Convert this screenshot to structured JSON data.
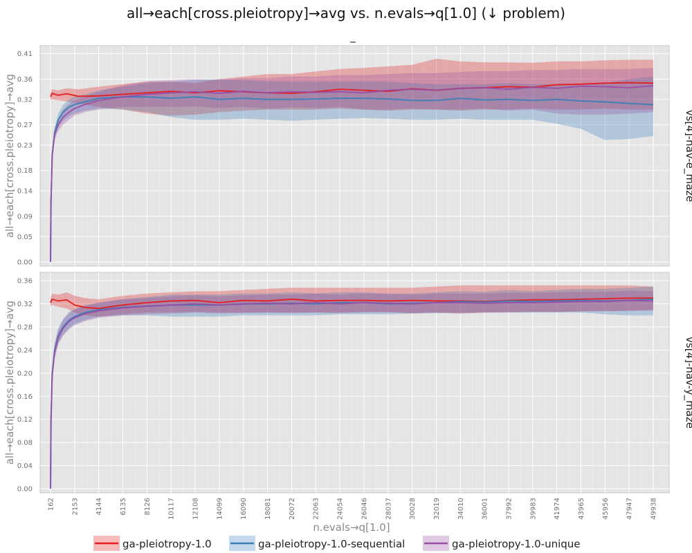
{
  "chart_data": {
    "type": "line",
    "title": "all→each[cross.pleiotropy]→avg vs. n.evals→q[1.0] (↓ problem)",
    "subtitle": "_",
    "xlabel": "n.evals→q[1.0]",
    "ylabel": "all→each[cross.pleiotropy]→avg",
    "x_ticks": [
      162,
      2153,
      4144,
      6135,
      8126,
      10117,
      12108,
      14099,
      16090,
      18081,
      20072,
      22063,
      24054,
      26046,
      28037,
      30028,
      32019,
      34010,
      36001,
      37992,
      39983,
      41974,
      43965,
      45956,
      47947,
      49938
    ],
    "xlim": [
      162,
      49938
    ],
    "grid": true,
    "legend_position": "bottom",
    "series_styles": [
      {
        "name": "ga-pleiotropy-1.0",
        "color": "#e41a1c"
      },
      {
        "name": "ga-pleiotropy-1.0-sequential",
        "color": "#377eb8"
      },
      {
        "name": "ga-pleiotropy-1.0-unique",
        "color": "#984ea3"
      }
    ],
    "facets": [
      {
        "label": "vs[4]-nav-e_maze",
        "y_ticks": [
          "0.00",
          "0.05",
          "0.09",
          "0.14",
          "0.18",
          "0.23",
          "0.27",
          "0.32",
          "0.36",
          "0.41"
        ],
        "ylim": [
          0,
          0.415
        ],
        "series": [
          {
            "name": "ga-pleiotropy-1.0",
            "x": [
              162,
              300,
              800,
              1500,
              2500,
              4144,
              6135,
              8126,
              10117,
              12108,
              14099,
              16090,
              18081,
              20072,
              22063,
              24054,
              26046,
              28037,
              30028,
              32019,
              34010,
              36001,
              37992,
              39983,
              41974,
              43965,
              45956,
              47947,
              49938
            ],
            "mean": [
              0.325,
              0.332,
              0.328,
              0.331,
              0.326,
              0.327,
              0.33,
              0.333,
              0.336,
              0.333,
              0.337,
              0.335,
              0.333,
              0.332,
              0.335,
              0.34,
              0.338,
              0.336,
              0.341,
              0.338,
              0.342,
              0.343,
              0.345,
              0.344,
              0.349,
              0.35,
              0.352,
              0.353,
              0.352
            ],
            "lower": [
              0.318,
              0.32,
              0.318,
              0.316,
              0.312,
              0.305,
              0.3,
              0.292,
              0.288,
              0.29,
              0.295,
              0.298,
              0.3,
              0.3,
              0.3,
              0.302,
              0.3,
              0.298,
              0.3,
              0.3,
              0.298,
              0.3,
              0.3,
              0.302,
              0.3,
              0.3,
              0.302,
              0.3,
              0.3
            ],
            "upper": [
              0.332,
              0.34,
              0.338,
              0.342,
              0.34,
              0.345,
              0.35,
              0.355,
              0.355,
              0.352,
              0.36,
              0.365,
              0.37,
              0.37,
              0.375,
              0.38,
              0.382,
              0.385,
              0.388,
              0.4,
              0.395,
              0.393,
              0.393,
              0.392,
              0.395,
              0.395,
              0.397,
              0.398,
              0.398
            ]
          },
          {
            "name": "ga-pleiotropy-1.0-sequential",
            "x": [
              162,
              200,
              300,
              500,
              800,
              1200,
              1700,
              2153,
              3000,
              4144,
              6135,
              8126,
              10117,
              12108,
              14099,
              16090,
              18081,
              20072,
              22063,
              24054,
              26046,
              28037,
              30028,
              32019,
              34010,
              36001,
              37992,
              39983,
              41974,
              43965,
              45956,
              47947,
              49938
            ],
            "mean": [
              0.0,
              0.12,
              0.21,
              0.255,
              0.28,
              0.295,
              0.305,
              0.31,
              0.315,
              0.322,
              0.325,
              0.325,
              0.322,
              0.325,
              0.32,
              0.322,
              0.32,
              0.32,
              0.321,
              0.322,
              0.322,
              0.321,
              0.318,
              0.318,
              0.322,
              0.319,
              0.32,
              0.318,
              0.32,
              0.317,
              0.315,
              0.312,
              0.31
            ],
            "lower": [
              0.0,
              0.112,
              0.2,
              0.245,
              0.265,
              0.278,
              0.287,
              0.292,
              0.298,
              0.302,
              0.3,
              0.295,
              0.285,
              0.28,
              0.28,
              0.282,
              0.28,
              0.278,
              0.28,
              0.282,
              0.283,
              0.282,
              0.28,
              0.28,
              0.282,
              0.28,
              0.28,
              0.28,
              0.272,
              0.262,
              0.24,
              0.242,
              0.248
            ],
            "upper": [
              0.0,
              0.128,
              0.22,
              0.265,
              0.292,
              0.31,
              0.32,
              0.326,
              0.33,
              0.338,
              0.345,
              0.352,
              0.355,
              0.358,
              0.36,
              0.358,
              0.356,
              0.355,
              0.355,
              0.355,
              0.356,
              0.355,
              0.352,
              0.35,
              0.35,
              0.35,
              0.352,
              0.35,
              0.35,
              0.35,
              0.352,
              0.36,
              0.365
            ]
          },
          {
            "name": "ga-pleiotropy-1.0-unique",
            "x": [
              162,
              200,
              300,
              500,
              800,
              1200,
              1700,
              2153,
              3000,
              4144,
              6135,
              8126,
              10117,
              12108,
              14099,
              16090,
              18081,
              20072,
              22063,
              24054,
              26046,
              28037,
              30028,
              32019,
              34010,
              36001,
              37992,
              39983,
              41974,
              43965,
              45956,
              47947,
              49938
            ],
            "mean": [
              0.0,
              0.12,
              0.21,
              0.25,
              0.27,
              0.285,
              0.295,
              0.302,
              0.31,
              0.318,
              0.325,
              0.33,
              0.333,
              0.335,
              0.332,
              0.336,
              0.333,
              0.335,
              0.334,
              0.335,
              0.333,
              0.338,
              0.34,
              0.338,
              0.342,
              0.343,
              0.34,
              0.344,
              0.342,
              0.346,
              0.345,
              0.343,
              0.347
            ],
            "lower": [
              0.0,
              0.112,
              0.2,
              0.24,
              0.258,
              0.27,
              0.28,
              0.288,
              0.295,
              0.3,
              0.305,
              0.305,
              0.305,
              0.306,
              0.303,
              0.305,
              0.302,
              0.304,
              0.303,
              0.305,
              0.3,
              0.3,
              0.302,
              0.3,
              0.3,
              0.302,
              0.298,
              0.3,
              0.292,
              0.29,
              0.29,
              0.292,
              0.295
            ],
            "upper": [
              0.0,
              0.128,
              0.22,
              0.26,
              0.282,
              0.3,
              0.312,
              0.318,
              0.325,
              0.335,
              0.348,
              0.356,
              0.358,
              0.36,
              0.358,
              0.362,
              0.362,
              0.365,
              0.365,
              0.368,
              0.368,
              0.37,
              0.372,
              0.372,
              0.374,
              0.376,
              0.376,
              0.378,
              0.378,
              0.38,
              0.38,
              0.38,
              0.382
            ]
          }
        ]
      },
      {
        "label": "vs[4]-nav-y_maze",
        "y_ticks": [
          "0.00",
          "0.04",
          "0.08",
          "0.12",
          "0.16",
          "0.20",
          "0.24",
          "0.28",
          "0.32",
          "0.36"
        ],
        "ylim": [
          0,
          0.365
        ],
        "series": [
          {
            "name": "ga-pleiotropy-1.0",
            "x": [
              162,
              300,
              800,
              1500,
              2153,
              3000,
              4144,
              6135,
              8126,
              10117,
              12108,
              14099,
              16090,
              18081,
              20072,
              22063,
              24054,
              26046,
              28037,
              30028,
              32019,
              34010,
              36001,
              37992,
              39983,
              41974,
              43965,
              45956,
              47947,
              49938
            ],
            "mean": [
              0.322,
              0.328,
              0.325,
              0.327,
              0.318,
              0.314,
              0.312,
              0.318,
              0.322,
              0.325,
              0.326,
              0.322,
              0.326,
              0.325,
              0.328,
              0.325,
              0.326,
              0.326,
              0.325,
              0.326,
              0.325,
              0.325,
              0.324,
              0.326,
              0.327,
              0.327,
              0.328,
              0.329,
              0.33,
              0.33
            ],
            "lower": [
              0.316,
              0.318,
              0.315,
              0.312,
              0.305,
              0.3,
              0.298,
              0.302,
              0.305,
              0.305,
              0.306,
              0.305,
              0.305,
              0.305,
              0.305,
              0.305,
              0.305,
              0.306,
              0.306,
              0.304,
              0.305,
              0.303,
              0.305,
              0.306,
              0.306,
              0.306,
              0.307,
              0.308,
              0.308,
              0.31
            ],
            "upper": [
              0.33,
              0.338,
              0.336,
              0.34,
              0.334,
              0.33,
              0.328,
              0.334,
              0.338,
              0.34,
              0.342,
              0.342,
              0.344,
              0.346,
              0.348,
              0.348,
              0.348,
              0.348,
              0.348,
              0.348,
              0.35,
              0.352,
              0.352,
              0.352,
              0.352,
              0.352,
              0.352,
              0.352,
              0.352,
              0.35
            ]
          },
          {
            "name": "ga-pleiotropy-1.0-sequential",
            "x": [
              162,
              200,
              300,
              500,
              800,
              1200,
              1700,
              2153,
              3000,
              4144,
              6135,
              8126,
              10117,
              12108,
              14099,
              16090,
              18081,
              20072,
              22063,
              24054,
              26046,
              28037,
              30028,
              32019,
              34010,
              36001,
              37992,
              39983,
              41974,
              43965,
              45956,
              47947,
              49938
            ],
            "mean": [
              0.0,
              0.12,
              0.2,
              0.24,
              0.265,
              0.28,
              0.292,
              0.298,
              0.305,
              0.31,
              0.314,
              0.316,
              0.318,
              0.318,
              0.318,
              0.32,
              0.32,
              0.321,
              0.32,
              0.322,
              0.322,
              0.32,
              0.321,
              0.322,
              0.324,
              0.323,
              0.325,
              0.324,
              0.325,
              0.326,
              0.325,
              0.326,
              0.328
            ],
            "lower": [
              0.0,
              0.112,
              0.19,
              0.228,
              0.252,
              0.266,
              0.278,
              0.285,
              0.292,
              0.298,
              0.3,
              0.3,
              0.298,
              0.298,
              0.298,
              0.3,
              0.3,
              0.3,
              0.3,
              0.302,
              0.302,
              0.302,
              0.303,
              0.304,
              0.304,
              0.305,
              0.305,
              0.305,
              0.305,
              0.305,
              0.302,
              0.3,
              0.3
            ],
            "upper": [
              0.0,
              0.128,
              0.21,
              0.252,
              0.278,
              0.294,
              0.306,
              0.311,
              0.318,
              0.322,
              0.328,
              0.332,
              0.336,
              0.336,
              0.336,
              0.338,
              0.338,
              0.34,
              0.338,
              0.34,
              0.34,
              0.338,
              0.338,
              0.34,
              0.342,
              0.341,
              0.344,
              0.342,
              0.344,
              0.346,
              0.346,
              0.348,
              0.35
            ]
          },
          {
            "name": "ga-pleiotropy-1.0-unique",
            "x": [
              162,
              200,
              300,
              500,
              800,
              1200,
              1700,
              2153,
              3000,
              4144,
              6135,
              8126,
              10117,
              12108,
              14099,
              16090,
              18081,
              20072,
              22063,
              24054,
              26046,
              28037,
              30028,
              32019,
              34010,
              36001,
              37992,
              39983,
              41974,
              43965,
              45956,
              47947,
              49938
            ],
            "mean": [
              0.0,
              0.118,
              0.196,
              0.236,
              0.262,
              0.278,
              0.29,
              0.296,
              0.303,
              0.308,
              0.313,
              0.316,
              0.318,
              0.32,
              0.318,
              0.32,
              0.321,
              0.32,
              0.322,
              0.32,
              0.322,
              0.321,
              0.32,
              0.322,
              0.322,
              0.321,
              0.322,
              0.322,
              0.323,
              0.324,
              0.324,
              0.326,
              0.325
            ],
            "lower": [
              0.0,
              0.11,
              0.186,
              0.224,
              0.25,
              0.265,
              0.276,
              0.283,
              0.29,
              0.296,
              0.3,
              0.302,
              0.303,
              0.305,
              0.303,
              0.304,
              0.305,
              0.304,
              0.305,
              0.304,
              0.305,
              0.305,
              0.304,
              0.305,
              0.305,
              0.305,
              0.305,
              0.306,
              0.306,
              0.307,
              0.307,
              0.308,
              0.308
            ],
            "upper": [
              0.0,
              0.126,
              0.206,
              0.248,
              0.275,
              0.292,
              0.304,
              0.31,
              0.316,
              0.322,
              0.328,
              0.33,
              0.333,
              0.335,
              0.333,
              0.335,
              0.336,
              0.336,
              0.338,
              0.336,
              0.338,
              0.337,
              0.336,
              0.338,
              0.338,
              0.338,
              0.339,
              0.339,
              0.34,
              0.341,
              0.341,
              0.343,
              0.342
            ]
          }
        ]
      }
    ]
  }
}
